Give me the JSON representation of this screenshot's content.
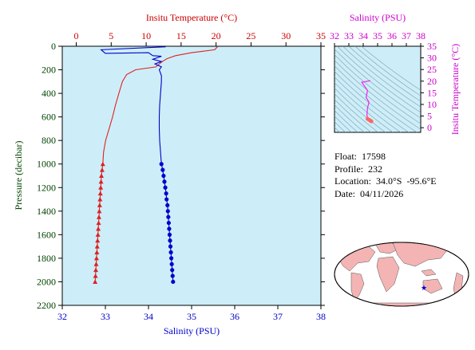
{
  "chart_data": [
    {
      "type": "line",
      "panel": "profile",
      "top_axis": {
        "label": "Insitu Temperature (°C)",
        "range": [
          -2,
          35
        ],
        "ticks": [
          0,
          5,
          10,
          15,
          20,
          25,
          30,
          35
        ],
        "color": "#cc0000"
      },
      "bottom_axis": {
        "label": "Salinity (PSU)",
        "range": [
          32,
          38
        ],
        "ticks": [
          32,
          33,
          34,
          35,
          36,
          37,
          38
        ],
        "color": "#0000cc"
      },
      "left_axis": {
        "label": "Pressure (decibar)",
        "range": [
          0,
          2200
        ],
        "inverted": true,
        "ticks": [
          0,
          200,
          400,
          600,
          800,
          1000,
          1200,
          1400,
          1600,
          1800,
          2000,
          2200
        ],
        "color": "#004400"
      },
      "series": [
        {
          "quantity": "temperature",
          "axis": "top",
          "color": "#dd2222",
          "marker": "triangle",
          "points": [
            [
              20.2,
              5
            ],
            [
              19.8,
              30
            ],
            [
              16.5,
              55
            ],
            [
              14.2,
              80
            ],
            [
              13.0,
              105
            ],
            [
              12.3,
              130
            ],
            [
              11.4,
              175
            ],
            [
              8.5,
              200
            ],
            [
              7.2,
              240
            ],
            [
              6.6,
              300
            ],
            [
              6.1,
              400
            ],
            [
              5.6,
              500
            ],
            [
              5.2,
              600
            ],
            [
              4.7,
              700
            ],
            [
              4.2,
              800
            ],
            [
              3.9,
              900
            ],
            [
              3.8,
              1000
            ]
          ],
          "marked_points": [
            [
              3.8,
              1000
            ],
            [
              3.7,
              1050
            ],
            [
              3.6,
              1100
            ],
            [
              3.55,
              1150
            ],
            [
              3.5,
              1200
            ],
            [
              3.45,
              1250
            ],
            [
              3.4,
              1300
            ],
            [
              3.35,
              1350
            ],
            [
              3.3,
              1400
            ],
            [
              3.25,
              1450
            ],
            [
              3.2,
              1500
            ],
            [
              3.15,
              1550
            ],
            [
              3.1,
              1600
            ],
            [
              3.05,
              1650
            ],
            [
              3.0,
              1700
            ],
            [
              2.95,
              1750
            ],
            [
              2.9,
              1800
            ],
            [
              2.85,
              1850
            ],
            [
              2.8,
              1900
            ],
            [
              2.75,
              1950
            ],
            [
              2.7,
              2000
            ]
          ]
        },
        {
          "quantity": "salinity",
          "axis": "bottom",
          "color": "#0000cc",
          "marker": "circle",
          "points": [
            [
              34.4,
              5
            ],
            [
              32.9,
              30
            ],
            [
              33.0,
              60
            ],
            [
              34.0,
              55
            ],
            [
              34.1,
              80
            ],
            [
              34.3,
              85
            ],
            [
              34.1,
              110
            ],
            [
              34.3,
              130
            ],
            [
              34.15,
              150
            ],
            [
              34.3,
              175
            ],
            [
              34.25,
              200
            ],
            [
              34.3,
              250
            ],
            [
              34.3,
              300
            ],
            [
              34.28,
              400
            ],
            [
              34.26,
              500
            ],
            [
              34.25,
              600
            ],
            [
              34.25,
              700
            ],
            [
              34.26,
              800
            ],
            [
              34.28,
              900
            ],
            [
              34.3,
              1000
            ]
          ],
          "marked_points": [
            [
              34.3,
              1000
            ],
            [
              34.33,
              1050
            ],
            [
              34.35,
              1100
            ],
            [
              34.37,
              1150
            ],
            [
              34.39,
              1200
            ],
            [
              34.41,
              1250
            ],
            [
              34.42,
              1300
            ],
            [
              34.44,
              1350
            ],
            [
              34.45,
              1400
            ],
            [
              34.46,
              1450
            ],
            [
              34.47,
              1500
            ],
            [
              34.48,
              1550
            ],
            [
              34.49,
              1600
            ],
            [
              34.5,
              1650
            ],
            [
              34.51,
              1700
            ],
            [
              34.52,
              1750
            ],
            [
              34.53,
              1800
            ],
            [
              34.54,
              1850
            ],
            [
              34.55,
              1900
            ],
            [
              34.56,
              1950
            ],
            [
              34.57,
              2000
            ]
          ]
        }
      ]
    },
    {
      "type": "scatter",
      "panel": "ts_diagram",
      "top_axis": {
        "label": "Salinity (PSU)",
        "range": [
          32,
          38
        ],
        "ticks": [
          32,
          33,
          34,
          35,
          36,
          37,
          38
        ],
        "color": "#cc00cc"
      },
      "right_axis": {
        "label": "Insitu Temperature (°C)",
        "range": [
          -2,
          35
        ],
        "ticks": [
          0,
          5,
          10,
          15,
          20,
          25,
          30,
          35
        ],
        "color": "#cc00cc"
      },
      "series": [
        {
          "quantity": "T-S profile",
          "color": "#ee22ee",
          "points": [
            [
              34.5,
              20.2
            ],
            [
              33.9,
              19.5
            ],
            [
              34.3,
              16.0
            ],
            [
              34.2,
              13.0
            ],
            [
              34.4,
              11.0
            ],
            [
              34.3,
              8.5
            ],
            [
              34.28,
              7.0
            ],
            [
              34.26,
              5.5
            ],
            [
              34.3,
              3.8
            ]
          ]
        },
        {
          "quantity": "deep points",
          "color": "#ff6666",
          "points": [
            [
              34.3,
              3.8
            ],
            [
              34.4,
              3.4
            ],
            [
              34.45,
              3.2
            ],
            [
              34.5,
              3.0
            ],
            [
              34.55,
              2.8
            ],
            [
              34.57,
              2.7
            ]
          ]
        }
      ]
    }
  ],
  "info": {
    "float": "Float:  17598",
    "profile": "Profile:  232",
    "location": "Location:  34.0°S  -95.6°E",
    "date": "Date:  04/11/2026"
  },
  "colors": {
    "plot_bg": "#cdeef8",
    "land": "#f4b4b4",
    "ocean": "#ffffff",
    "marker": "#000080"
  }
}
